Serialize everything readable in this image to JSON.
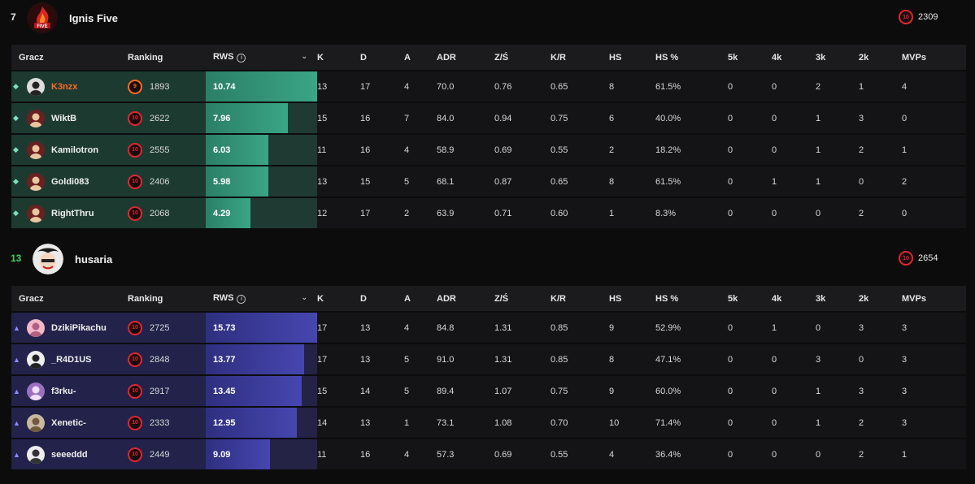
{
  "columns": [
    "Gracz",
    "Ranking",
    "RWS",
    "K",
    "D",
    "A",
    "ADR",
    "Z/Ś",
    "K/R",
    "HS",
    "HS %",
    "5k",
    "4k",
    "3k",
    "2k",
    "MVPs"
  ],
  "colors": {
    "team1_accent": "#3aa585",
    "team2_accent": "#4646b0",
    "elo": "#e0262f",
    "highlight": "#ff6a2b"
  },
  "teams": [
    {
      "rank": "7",
      "name": "Ignis Five",
      "logo_icon": "fire-five-logo",
      "level": "10",
      "elo": "2309",
      "players": [
        {
          "role": "diamond-icon",
          "name": "K3nzx",
          "level": "9",
          "elo": "1893",
          "rws": "10.74",
          "rws_fraction": 1.0,
          "k": "13",
          "d": "17",
          "a": "4",
          "adr": "70.0",
          "zs": "0.76",
          "kr": "0.65",
          "hs": "8",
          "hsp": "61.5%",
          "k5": "0",
          "k4": "0",
          "k3": "2",
          "k2": "1",
          "mvp": "4"
        },
        {
          "role": "diamond-icon",
          "name": "WiktB",
          "level": "10",
          "elo": "2622",
          "rws": "7.96",
          "rws_fraction": 0.74,
          "k": "15",
          "d": "16",
          "a": "7",
          "adr": "84.0",
          "zs": "0.94",
          "kr": "0.75",
          "hs": "6",
          "hsp": "40.0%",
          "k5": "0",
          "k4": "0",
          "k3": "1",
          "k2": "3",
          "mvp": "0"
        },
        {
          "role": "diamond-icon",
          "name": "Kamilotron",
          "level": "10",
          "elo": "2555",
          "rws": "6.03",
          "rws_fraction": 0.56,
          "k": "11",
          "d": "16",
          "a": "4",
          "adr": "58.9",
          "zs": "0.69",
          "kr": "0.55",
          "hs": "2",
          "hsp": "18.2%",
          "k5": "0",
          "k4": "0",
          "k3": "1",
          "k2": "2",
          "mvp": "1"
        },
        {
          "role": "diamond-icon",
          "name": "Goldi083",
          "level": "10",
          "elo": "2406",
          "rws": "5.98",
          "rws_fraction": 0.56,
          "k": "13",
          "d": "15",
          "a": "5",
          "adr": "68.1",
          "zs": "0.87",
          "kr": "0.65",
          "hs": "8",
          "hsp": "61.5%",
          "k5": "0",
          "k4": "1",
          "k3": "1",
          "k2": "0",
          "mvp": "2"
        },
        {
          "role": "diamond-icon",
          "name": "RightThru",
          "level": "10",
          "elo": "2068",
          "rws": "4.29",
          "rws_fraction": 0.4,
          "k": "12",
          "d": "17",
          "a": "2",
          "adr": "63.9",
          "zs": "0.71",
          "kr": "0.60",
          "hs": "1",
          "hsp": "8.3%",
          "k5": "0",
          "k4": "0",
          "k3": "0",
          "k2": "2",
          "mvp": "0"
        }
      ]
    },
    {
      "rank": "13",
      "name": "husaria",
      "logo_icon": "husaria-logo",
      "level": "10",
      "elo": "2654",
      "players": [
        {
          "role": "triangle-icon",
          "name": "DzikiPikachu",
          "level": "10",
          "elo": "2725",
          "rws": "15.73",
          "rws_fraction": 1.0,
          "k": "17",
          "d": "13",
          "a": "4",
          "adr": "84.8",
          "zs": "1.31",
          "kr": "0.85",
          "hs": "9",
          "hsp": "52.9%",
          "k5": "0",
          "k4": "1",
          "k3": "0",
          "k2": "3",
          "mvp": "3"
        },
        {
          "role": "triangle-icon",
          "name": "_R4D1US",
          "level": "10",
          "elo": "2848",
          "rws": "13.77",
          "rws_fraction": 0.88,
          "k": "17",
          "d": "13",
          "a": "5",
          "adr": "91.0",
          "zs": "1.31",
          "kr": "0.85",
          "hs": "8",
          "hsp": "47.1%",
          "k5": "0",
          "k4": "0",
          "k3": "3",
          "k2": "0",
          "mvp": "3"
        },
        {
          "role": "triangle-icon",
          "name": "f3rku-",
          "level": "10",
          "elo": "2917",
          "rws": "13.45",
          "rws_fraction": 0.86,
          "k": "15",
          "d": "14",
          "a": "5",
          "adr": "89.4",
          "zs": "1.07",
          "kr": "0.75",
          "hs": "9",
          "hsp": "60.0%",
          "k5": "0",
          "k4": "0",
          "k3": "1",
          "k2": "3",
          "mvp": "3"
        },
        {
          "role": "triangle-icon",
          "name": "Xenetic-",
          "level": "10",
          "elo": "2333",
          "rws": "12.95",
          "rws_fraction": 0.82,
          "k": "14",
          "d": "13",
          "a": "1",
          "adr": "73.1",
          "zs": "1.08",
          "kr": "0.70",
          "hs": "10",
          "hsp": "71.4%",
          "k5": "0",
          "k4": "0",
          "k3": "1",
          "k2": "2",
          "mvp": "3"
        },
        {
          "role": "triangle-icon",
          "name": "seeeddd",
          "level": "10",
          "elo": "2449",
          "rws": "9.09",
          "rws_fraction": 0.58,
          "k": "11",
          "d": "16",
          "a": "4",
          "adr": "57.3",
          "zs": "0.69",
          "kr": "0.55",
          "hs": "4",
          "hsp": "36.4%",
          "k5": "0",
          "k4": "0",
          "k3": "0",
          "k2": "2",
          "mvp": "1"
        }
      ]
    }
  ]
}
